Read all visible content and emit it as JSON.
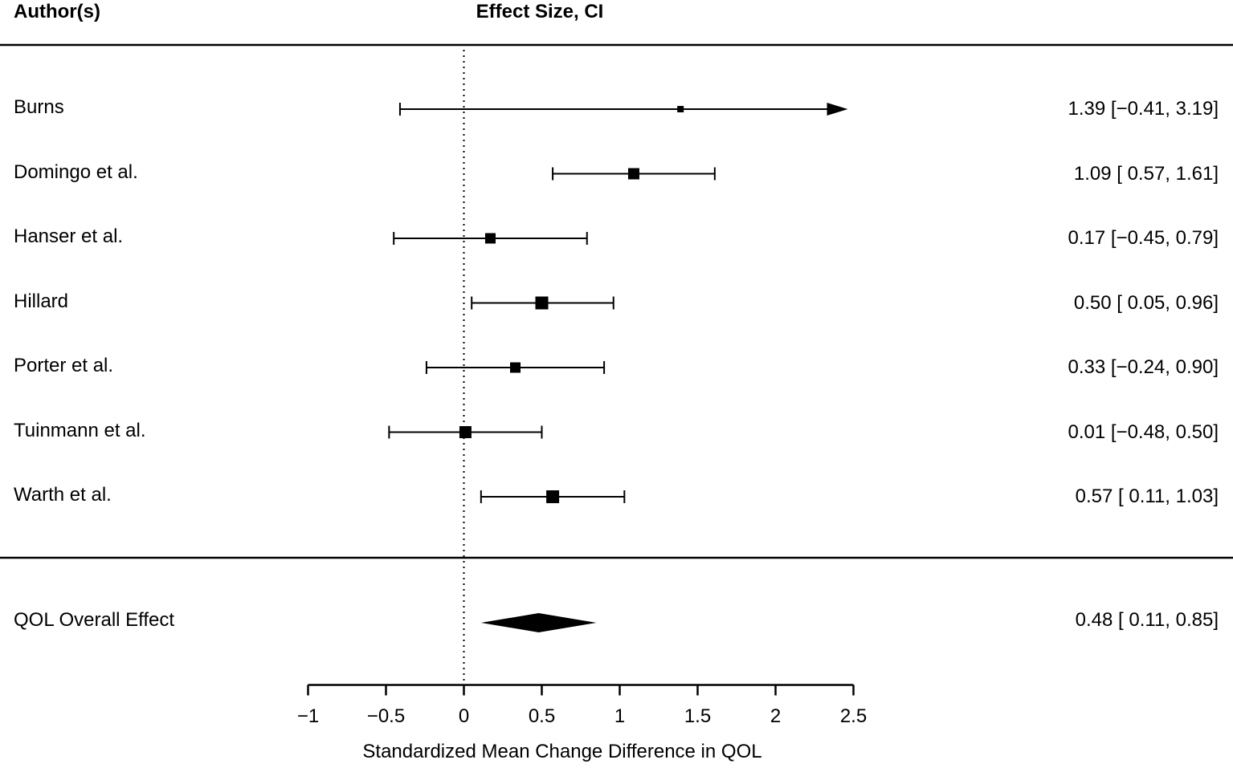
{
  "header": {
    "authors_col": "Author(s)",
    "effect_col": "Effect Size, CI"
  },
  "chart_data": {
    "type": "forest",
    "title": "",
    "xlabel": "Standardized Mean Change Difference in QOL",
    "xlim": [
      -1,
      2.5
    ],
    "x_ticks": [
      -1,
      -0.5,
      0,
      0.5,
      1,
      1.5,
      2,
      2.5
    ],
    "x_tick_labels": [
      "−1",
      "−0.5",
      "0",
      "0.5",
      "1",
      "1.5",
      "2",
      "2.5"
    ],
    "zero_reference_line": 0,
    "studies": [
      {
        "author": "Burns",
        "effect": 1.39,
        "ci_low": -0.41,
        "ci_high": 3.19,
        "label": "1.39 [−0.41, 3.19]",
        "marker_size": 8
      },
      {
        "author": "Domingo et al.",
        "effect": 1.09,
        "ci_low": 0.57,
        "ci_high": 1.61,
        "label": "1.09 [ 0.57, 1.61]",
        "marker_size": 14
      },
      {
        "author": "Hanser et al.",
        "effect": 0.17,
        "ci_low": -0.45,
        "ci_high": 0.79,
        "label": "0.17 [−0.45, 0.79]",
        "marker_size": 13
      },
      {
        "author": "Hillard",
        "effect": 0.5,
        "ci_low": 0.05,
        "ci_high": 0.96,
        "label": "0.50 [ 0.05, 0.96]",
        "marker_size": 16
      },
      {
        "author": "Porter et al.",
        "effect": 0.33,
        "ci_low": -0.24,
        "ci_high": 0.9,
        "label": "0.33 [−0.24, 0.90]",
        "marker_size": 13
      },
      {
        "author": "Tuinmann et al.",
        "effect": 0.01,
        "ci_low": -0.48,
        "ci_high": 0.5,
        "label": "0.01 [−0.48, 0.50]",
        "marker_size": 15
      },
      {
        "author": "Warth et al.",
        "effect": 0.57,
        "ci_low": 0.11,
        "ci_high": 1.03,
        "label": "0.57 [ 0.11, 1.03]",
        "marker_size": 16
      }
    ],
    "overall": {
      "author": "QOL Overall Effect",
      "effect": 0.48,
      "ci_low": 0.11,
      "ci_high": 0.85,
      "label": "0.48 [ 0.11, 0.85]"
    },
    "colors": {
      "foreground": "#000000",
      "background": "#ffffff"
    }
  }
}
